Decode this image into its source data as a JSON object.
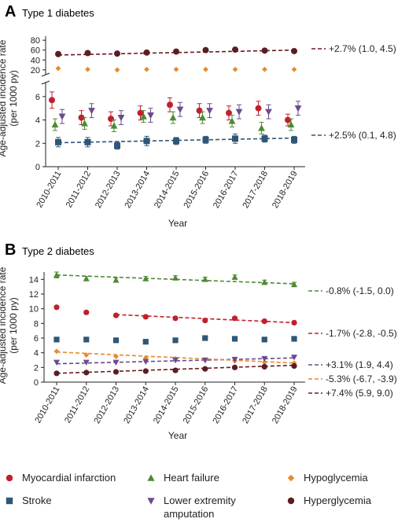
{
  "chart_data": [
    {
      "type": "scatter",
      "panel_letter": "A",
      "title": "Type 1 diabetes",
      "xlabel": "Year",
      "ylabel": "Age-adjusted incidence rate (per 1000 py)",
      "categories": [
        "2010-2011",
        "2011-2012",
        "2012-2013",
        "2013-2014",
        "2014-2015",
        "2015-2016",
        "2016-2017",
        "2017-2018",
        "2018-2019"
      ],
      "axis_break": true,
      "upper_yticks": [
        20,
        40,
        60,
        80
      ],
      "upper_ylim": [
        15,
        85
      ],
      "lower_yticks": [
        0,
        2,
        4,
        6
      ],
      "lower_ylim": [
        0,
        7
      ],
      "grid": false,
      "series": [
        {
          "key": "mi",
          "values": [
            5.7,
            4.2,
            4.1,
            4.6,
            5.3,
            4.8,
            4.6,
            5.0,
            4.0
          ],
          "err": [
            0.7,
            0.6,
            0.6,
            0.6,
            0.6,
            0.6,
            0.6,
            0.6,
            0.5
          ],
          "color": "#c0202c",
          "marker": "circle"
        },
        {
          "key": "hf",
          "values": [
            3.6,
            3.7,
            3.5,
            4.3,
            4.2,
            4.2,
            3.9,
            3.3,
            3.6
          ],
          "err": [
            0.5,
            0.5,
            0.5,
            0.5,
            0.5,
            0.5,
            0.5,
            0.5,
            0.5
          ],
          "color": "#4e8a34",
          "marker": "triangle-up"
        },
        {
          "key": "amp",
          "values": [
            4.3,
            4.8,
            4.2,
            4.4,
            4.9,
            4.8,
            4.7,
            4.7,
            5.0
          ],
          "err": [
            0.6,
            0.6,
            0.6,
            0.6,
            0.6,
            0.6,
            0.6,
            0.6,
            0.6
          ],
          "color": "#6a4b8c",
          "marker": "triangle-down"
        },
        {
          "key": "stroke",
          "values": [
            2.1,
            2.1,
            1.8,
            2.2,
            2.2,
            2.3,
            2.4,
            2.4,
            2.3
          ],
          "err": [
            0.4,
            0.4,
            0.3,
            0.4,
            0.3,
            0.3,
            0.4,
            0.3,
            0.3
          ],
          "color": "#2f5677",
          "marker": "square"
        },
        {
          "key": "hypo",
          "values": [
            23,
            21,
            20,
            21,
            21,
            21,
            21,
            21,
            21
          ],
          "color": "#e8892c",
          "marker": "diamond"
        },
        {
          "key": "hyper",
          "values": [
            52,
            54,
            53,
            55,
            57,
            60,
            61,
            59,
            58
          ],
          "color": "#5a1e22",
          "marker": "circle"
        }
      ],
      "trends": [
        {
          "key": "hyper",
          "start": 50,
          "end": 60,
          "color": "#6b1a20",
          "label": "+2.7% (1.0, 4.5)"
        },
        {
          "key": "stroke",
          "start": 2.05,
          "end": 2.45,
          "color": "#2f5677",
          "label": "+2.5% (0.1, 4.8)"
        }
      ]
    },
    {
      "type": "scatter",
      "panel_letter": "B",
      "title": "Type 2 diabetes",
      "xlabel": "Year",
      "ylabel": "Age-adjusted incidence rate(per 1000 py)",
      "categories": [
        "2010-2011",
        "2011-2012",
        "2012-2013",
        "2013-2014",
        "2014-2015",
        "2015-2016",
        "2016-2017",
        "2017-2018",
        "2018-2019"
      ],
      "yticks": [
        0,
        2,
        4,
        6,
        8,
        10,
        12,
        14
      ],
      "ylim": [
        0,
        15
      ],
      "grid": false,
      "series": [
        {
          "key": "hf",
          "values": [
            14.6,
            14.1,
            13.9,
            14.1,
            14.2,
            14.0,
            14.3,
            13.6,
            13.3
          ],
          "err": [
            0.4,
            0.3,
            0.3,
            0.3,
            0.3,
            0.3,
            0.3,
            0.3,
            0.3
          ],
          "color": "#4e8a34",
          "marker": "triangle-up"
        },
        {
          "key": "mi",
          "values": [
            10.2,
            9.5,
            9.1,
            8.9,
            8.7,
            8.4,
            8.7,
            8.3,
            8.1
          ],
          "err": [
            0.2,
            0.2,
            0.2,
            0.2,
            0.2,
            0.2,
            0.2,
            0.2,
            0.2
          ],
          "color": "#c0202c",
          "marker": "circle"
        },
        {
          "key": "stroke",
          "values": [
            5.8,
            5.8,
            5.7,
            5.5,
            5.7,
            6.0,
            5.9,
            5.8,
            5.9
          ],
          "color": "#2f5677",
          "marker": "square"
        },
        {
          "key": "hypo",
          "values": [
            4.2,
            3.7,
            3.5,
            3.3,
            3.2,
            3.0,
            2.9,
            2.7,
            2.6
          ],
          "color": "#e8892c",
          "marker": "diamond"
        },
        {
          "key": "amp",
          "values": [
            2.7,
            2.7,
            2.7,
            2.8,
            3.0,
            3.0,
            3.1,
            3.2,
            3.4
          ],
          "color": "#6a4b8c",
          "marker": "triangle-down"
        },
        {
          "key": "hyper",
          "values": [
            1.2,
            1.3,
            1.4,
            1.5,
            1.6,
            1.8,
            2.0,
            2.1,
            2.2
          ],
          "color": "#5a1e22",
          "marker": "circle"
        }
      ],
      "trends": [
        {
          "key": "hf",
          "start": 14.6,
          "end": 13.4,
          "color": "#4e8a34",
          "label": "-0.8% (-1.5, 0.0)"
        },
        {
          "key": "mi",
          "start": 9.2,
          "end": 8.1,
          "color": "#c0202c",
          "label": "-1.7% (-2.8, -0.5)",
          "from_index": 2
        },
        {
          "key": "amp",
          "start": 2.5,
          "end": 3.3,
          "color": "#6a4b8c",
          "label": "+3.1% (1.9, 4.4)"
        },
        {
          "key": "hypo",
          "start": 4.1,
          "end": 2.6,
          "color": "#e8892c",
          "label": "-5.3% (-6.7, -3.9)"
        },
        {
          "key": "hyper",
          "start": 1.2,
          "end": 2.3,
          "color": "#6b1a20",
          "label": "+7.4% (5.9, 9.0)"
        }
      ]
    }
  ],
  "legend": [
    {
      "key": "mi",
      "label": "Myocardial infarction",
      "color": "#c0202c",
      "marker": "circle"
    },
    {
      "key": "hf",
      "label": "Heart failure",
      "color": "#4e8a34",
      "marker": "triangle-up"
    },
    {
      "key": "hypo",
      "label": "Hypoglycemia",
      "color": "#e8892c",
      "marker": "diamond"
    },
    {
      "key": "stroke",
      "label": "Stroke",
      "color": "#2f5677",
      "marker": "square"
    },
    {
      "key": "amp",
      "label": "Lower extremity\namputation",
      "color": "#6a4b8c",
      "marker": "triangle-down"
    },
    {
      "key": "hyper",
      "label": "Hyperglycemia",
      "color": "#5a1e22",
      "marker": "circle"
    }
  ]
}
